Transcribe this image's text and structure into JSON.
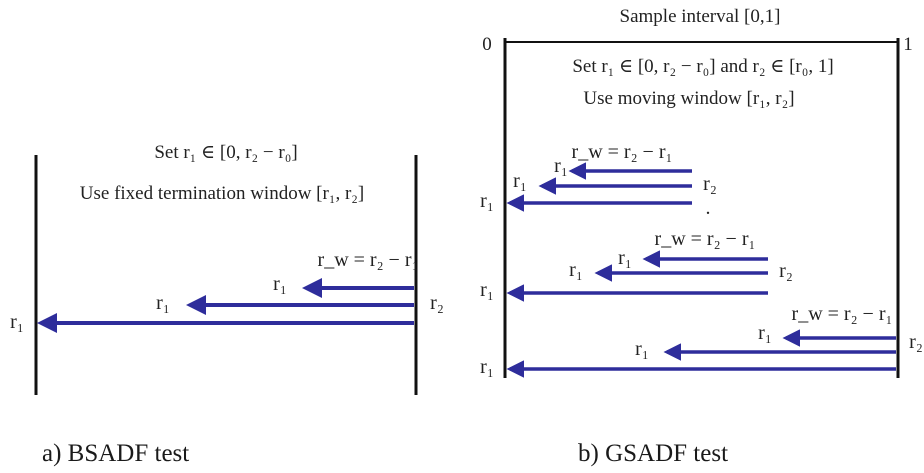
{
  "colors": {
    "arrow": "#2e2d9b",
    "frame": "#111111",
    "text": "#222222"
  },
  "panel_a": {
    "caption": "a)   BSADF test",
    "set_label": "Set r₁ ∈ [0, r₂ − r₀]",
    "window_label": "Use fixed termination window [r₁, r₂]",
    "rw_label": "r_w = r₂ − r₁",
    "r1_label": "r₁",
    "r2_label": "r₂"
  },
  "panel_b": {
    "caption": "b) GSADF test",
    "title": "Sample interval [0,1]",
    "tick_start": "0",
    "tick_end": "1",
    "set_label": "Set r₁ ∈ [0, r₂ − r₀] and r₂ ∈ [r₀, 1]",
    "window_label": "Use moving window [r₁, r₂]",
    "rw_label": "r_w = r₂ − r₁",
    "r1_label": "r₁",
    "r2_label": "r₂",
    "dot": "."
  }
}
